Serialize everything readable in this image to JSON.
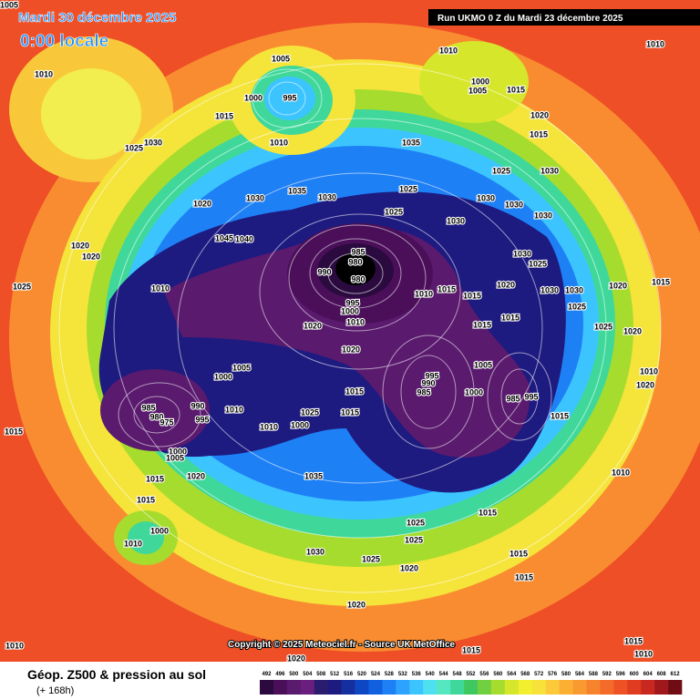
{
  "header": {
    "date": "Mardi 30 décembre 2025",
    "time": "0:00 locale",
    "run": "Run UKMO 0 Z du Mardi 23 décembre 2025"
  },
  "footer": {
    "title": "Géop. Z500 & pression au sol",
    "lead": "(+ 168h)",
    "copyright": "Copyright © 2025 Meteociel.fr - Source UK MetOffice"
  },
  "colorbar": {
    "ticks": [
      492,
      496,
      500,
      504,
      508,
      512,
      516,
      520,
      524,
      528,
      532,
      536,
      540,
      544,
      548,
      552,
      556,
      560,
      564,
      568,
      572,
      576,
      580,
      584,
      588,
      592,
      596,
      600,
      604,
      608,
      612
    ],
    "colors": [
      "#2b0b3f",
      "#4b0f5a",
      "#5a1a6e",
      "#6a1f7e",
      "#2a1c6e",
      "#1d1a80",
      "#1430a0",
      "#0e47c4",
      "#1060e0",
      "#1e80f5",
      "#2ea2ff",
      "#3cc4ff",
      "#4ee0f0",
      "#55e8c0",
      "#3fd89a",
      "#40c860",
      "#70d040",
      "#a6dc2e",
      "#d6e62a",
      "#f2ef2f",
      "#f8e23a",
      "#fcc93a",
      "#fbb034",
      "#f99a30",
      "#f7842c",
      "#f46a28",
      "#ee5224",
      "#e03c22",
      "#c82820",
      "#a0181c",
      "#700c14"
    ]
  },
  "isobar_labels": [
    1005,
    1010,
    1025,
    1030,
    1015,
    1005,
    1000,
    995,
    1010,
    1035,
    1010,
    1000,
    1005,
    1015,
    1020,
    1015,
    1010,
    1025,
    1030,
    1025,
    1030,
    1030,
    1025,
    1030,
    1030,
    1035,
    1030,
    1030,
    1020,
    1045,
    1040,
    1020,
    1020,
    1025,
    1010,
    985,
    980,
    990,
    980,
    995,
    1000,
    1010,
    1020,
    1010,
    1015,
    1015,
    1020,
    1030,
    1025,
    1030,
    1030,
    1025,
    1025,
    1020,
    1015,
    1020,
    1015,
    1015,
    1020,
    1005,
    1005,
    1000,
    995,
    990,
    985,
    1000,
    985,
    995,
    1015,
    1025,
    1015,
    1015,
    1010,
    1020,
    985,
    980,
    975,
    990,
    995,
    1010,
    1010,
    1000,
    1015,
    1000,
    1005,
    1015,
    1020,
    1035,
    1010,
    1015,
    1015,
    1000,
    1010,
    1025,
    1030,
    1025,
    1025,
    1020,
    1015,
    1015,
    1020,
    1015,
    1015,
    1010,
    1010,
    1020
  ]
}
